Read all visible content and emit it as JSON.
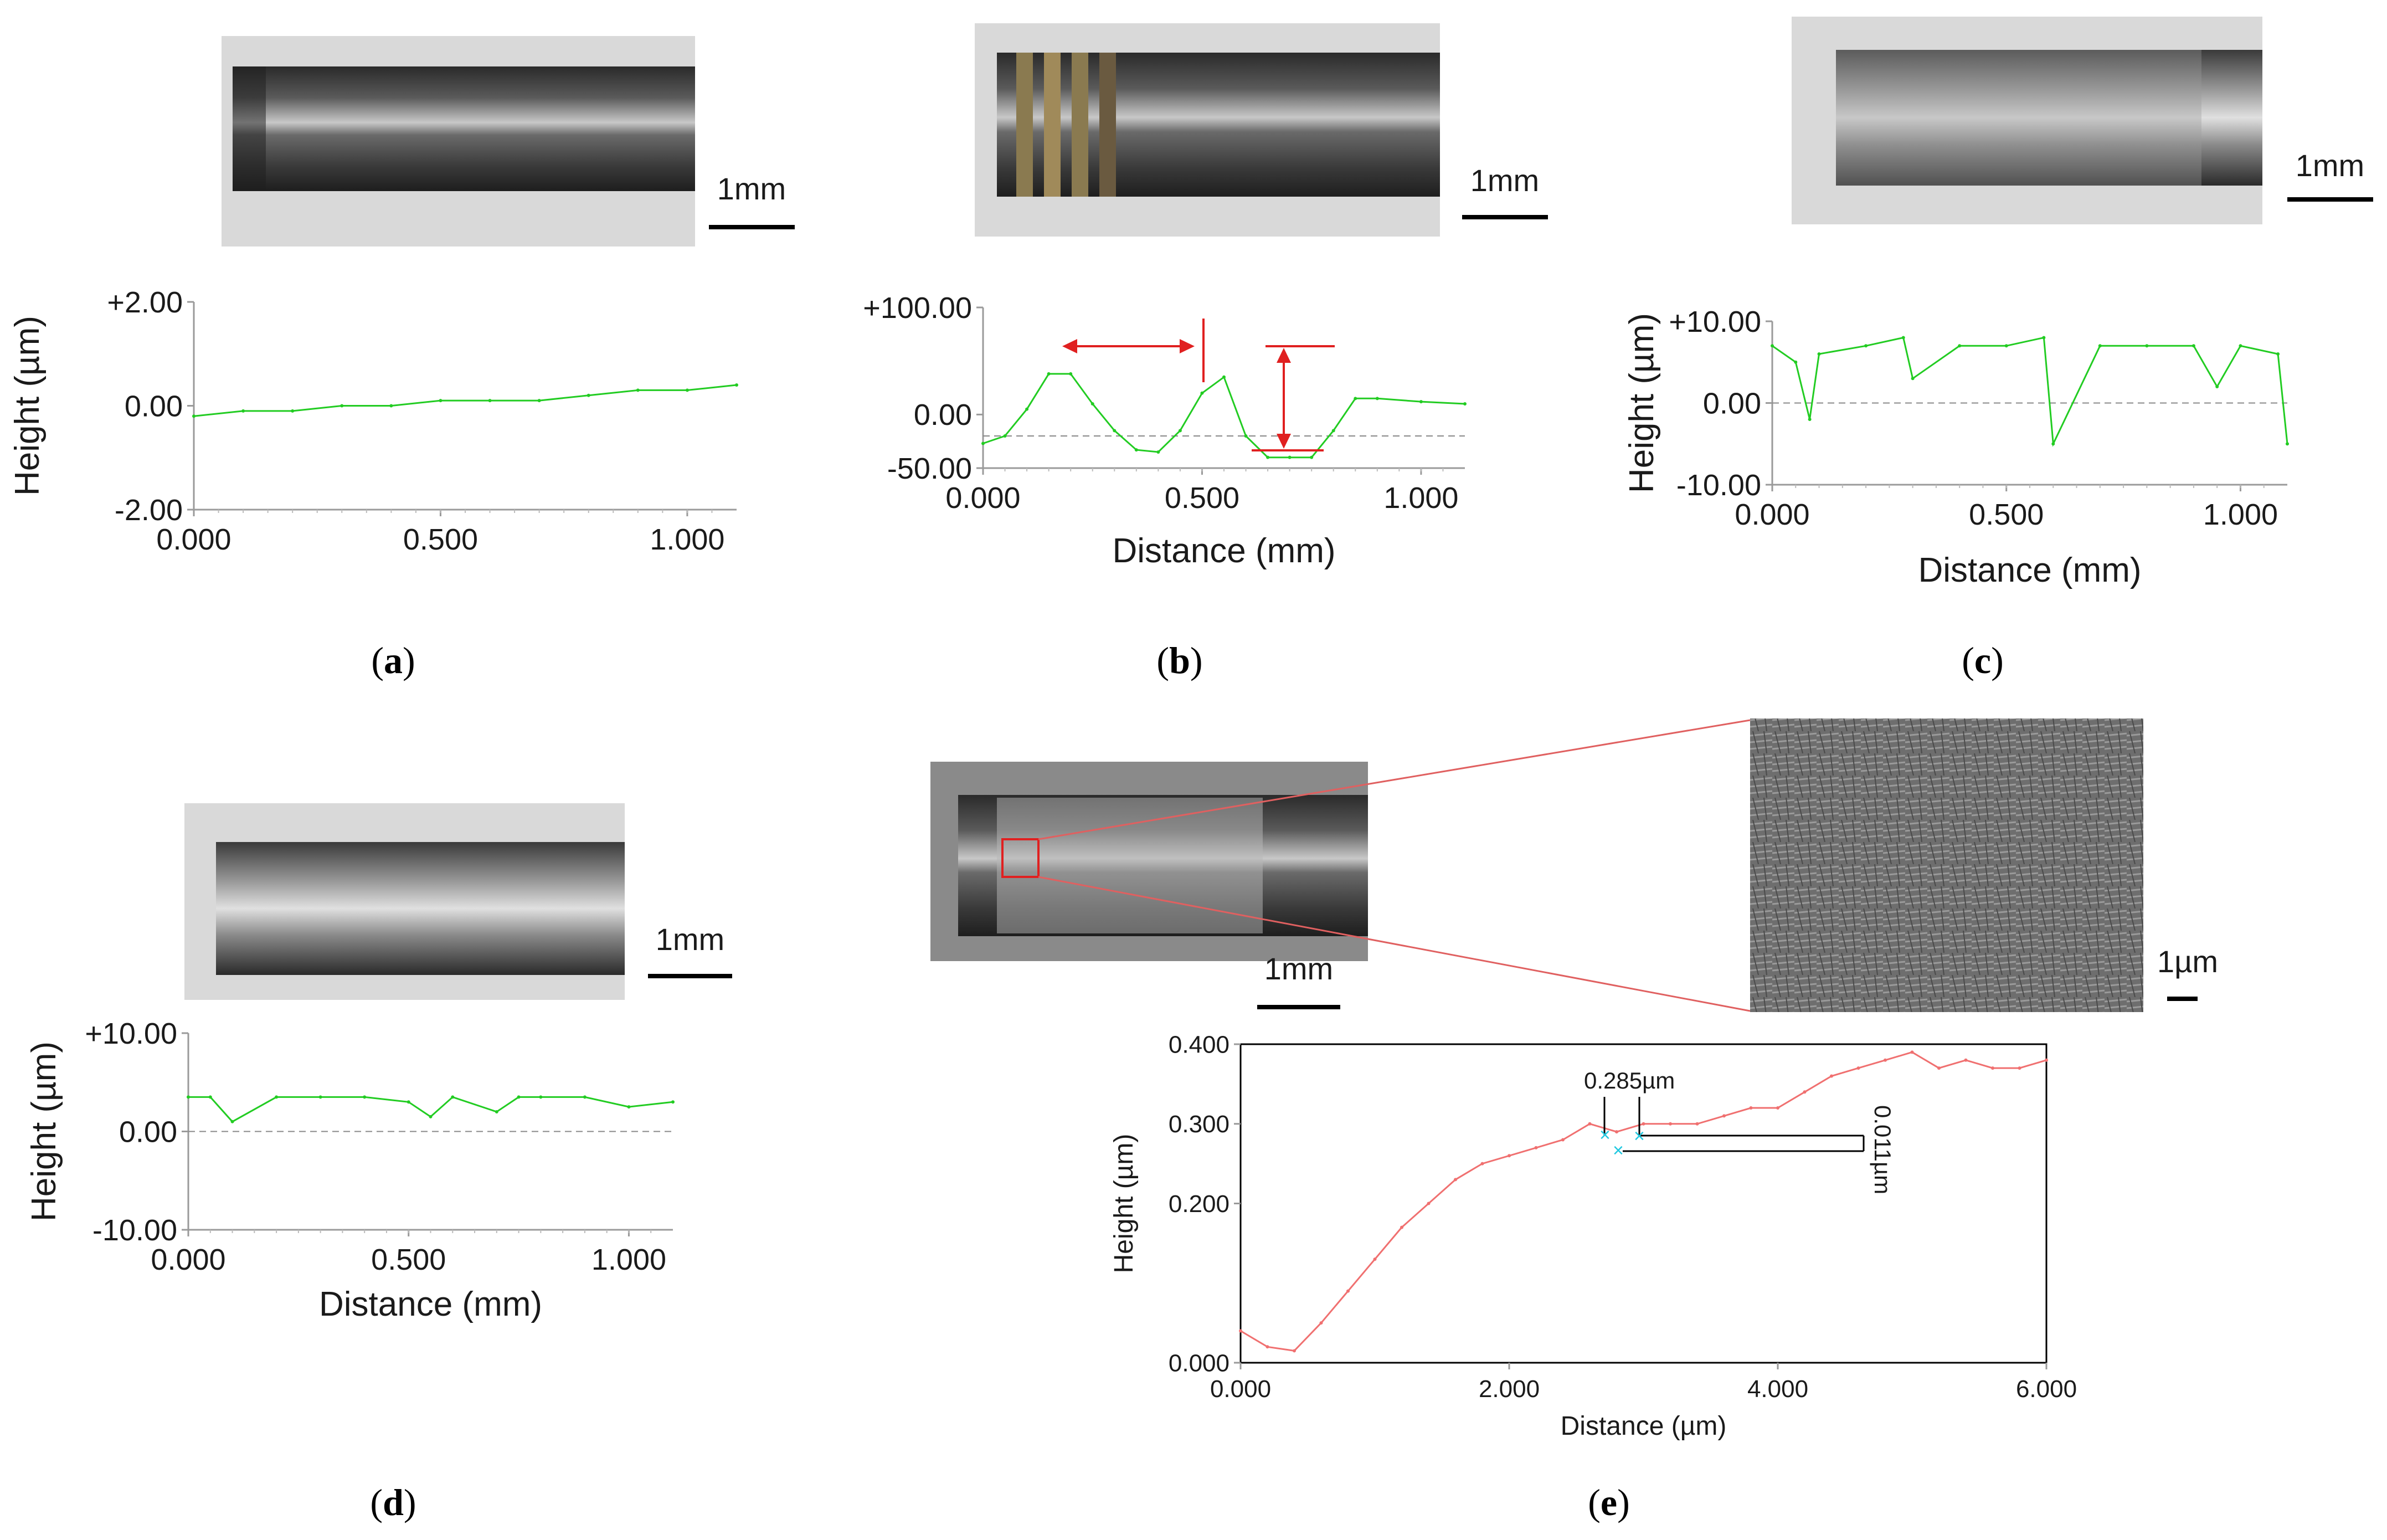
{
  "panels": [
    {
      "id": "a",
      "caption_letter": "a",
      "scale_bar": "1mm",
      "ylabel": "Height (µm)",
      "xlabel": "",
      "y_ticks": [
        "+2.00",
        "0.00",
        "-2.00"
      ],
      "x_ticks": [
        "0.000",
        "0.500",
        "1.000"
      ]
    },
    {
      "id": "b",
      "caption_letter": "b",
      "scale_bar": "1mm",
      "ylabel": "",
      "xlabel": "Distance (mm)",
      "y_ticks": [
        "+100.00",
        "0.00",
        "-50.00"
      ],
      "x_ticks": [
        "0.000",
        "0.500",
        "1.000"
      ]
    },
    {
      "id": "c",
      "caption_letter": "c",
      "scale_bar": "1mm",
      "ylabel": "Height (µm)",
      "xlabel": "Distance (mm)",
      "y_ticks": [
        "+10.00",
        "0.00",
        "-10.00"
      ],
      "x_ticks": [
        "0.000",
        "0.500",
        "1.000"
      ]
    },
    {
      "id": "d",
      "caption_letter": "d",
      "scale_bar": "1mm",
      "ylabel": "Height (µm)",
      "xlabel": "Distance (mm)",
      "y_ticks": [
        "+10.00",
        "0.00",
        "-10.00"
      ],
      "x_ticks": [
        "0.000",
        "0.500",
        "1.000"
      ]
    },
    {
      "id": "e",
      "caption_letter": "e",
      "scale_bar": "1mm",
      "scale_bar_sem": "1µm",
      "ylabel": "Height (µm)",
      "xlabel": "Distance (µm)",
      "y_ticks": [
        "0.400",
        "0.300",
        "0.200",
        "0.000"
      ],
      "x_ticks": [
        "0.000",
        "2.000",
        "4.000",
        "6.000"
      ],
      "annotation_value": "0.285µm",
      "annotation_diff": "0.011µm"
    }
  ],
  "colors": {
    "profile_green": "#22cc22",
    "profile_red": "#f07070",
    "marker_red": "#e02020",
    "marker_cyan": "#20c8e0"
  },
  "chart_data": [
    {
      "type": "line",
      "panel": "a",
      "xlabel": "",
      "ylabel": "Height (µm)",
      "xlim": [
        0,
        1.1
      ],
      "ylim": [
        -2,
        2
      ],
      "series": [
        {
          "x": [
            0.0,
            0.1,
            0.2,
            0.3,
            0.4,
            0.5,
            0.6,
            0.7,
            0.8,
            0.9,
            1.0,
            1.1
          ],
          "values": [
            -0.2,
            -0.1,
            -0.1,
            0.0,
            0.0,
            0.1,
            0.1,
            0.1,
            0.2,
            0.3,
            0.3,
            0.4
          ]
        }
      ]
    },
    {
      "type": "line",
      "panel": "b",
      "xlabel": "Distance (mm)",
      "ylabel": "",
      "xlim": [
        0,
        1.1
      ],
      "ylim": [
        -50,
        100
      ],
      "series": [
        {
          "x": [
            0.0,
            0.05,
            0.1,
            0.15,
            0.2,
            0.25,
            0.3,
            0.35,
            0.4,
            0.45,
            0.5,
            0.55,
            0.6,
            0.65,
            0.7,
            0.75,
            0.8,
            0.85,
            0.9,
            1.0,
            1.1
          ],
          "values": [
            -27,
            -20,
            5,
            38,
            38,
            10,
            -15,
            -33,
            -35,
            -15,
            20,
            35,
            -20,
            -40,
            -40,
            -40,
            -15,
            15,
            15,
            12,
            10
          ]
        }
      ]
    },
    {
      "type": "line",
      "panel": "c",
      "xlabel": "Distance (mm)",
      "ylabel": "Height (µm)",
      "xlim": [
        0,
        1.1
      ],
      "ylim": [
        -10,
        10
      ],
      "series": [
        {
          "x": [
            0.0,
            0.05,
            0.08,
            0.1,
            0.2,
            0.28,
            0.3,
            0.4,
            0.5,
            0.58,
            0.6,
            0.7,
            0.8,
            0.9,
            0.95,
            1.0,
            1.08,
            1.1
          ],
          "values": [
            7,
            5,
            -2,
            6,
            7,
            8,
            3,
            7,
            7,
            8,
            -5,
            7,
            7,
            7,
            2,
            7,
            6,
            -5
          ]
        }
      ]
    },
    {
      "type": "line",
      "panel": "d",
      "xlabel": "Distance (mm)",
      "ylabel": "Height (µm)",
      "xlim": [
        0,
        1.1
      ],
      "ylim": [
        -10,
        10
      ],
      "series": [
        {
          "x": [
            0.0,
            0.05,
            0.1,
            0.2,
            0.3,
            0.4,
            0.5,
            0.55,
            0.6,
            0.7,
            0.75,
            0.8,
            0.9,
            1.0,
            1.1
          ],
          "values": [
            3.5,
            3.5,
            1.0,
            3.5,
            3.5,
            3.5,
            3.0,
            1.5,
            3.5,
            2.0,
            3.5,
            3.5,
            3.5,
            2.5,
            3.0
          ]
        }
      ]
    },
    {
      "type": "line",
      "panel": "e",
      "xlabel": "Distance (µm)",
      "ylabel": "Height (µm)",
      "xlim": [
        0,
        6
      ],
      "ylim": [
        0,
        0.4
      ],
      "series": [
        {
          "x": [
            0.0,
            0.2,
            0.4,
            0.6,
            0.8,
            1.0,
            1.2,
            1.4,
            1.6,
            1.8,
            2.0,
            2.2,
            2.4,
            2.6,
            2.8,
            3.0,
            3.2,
            3.4,
            3.6,
            3.8,
            4.0,
            4.2,
            4.4,
            4.6,
            4.8,
            5.0,
            5.2,
            5.4,
            5.6,
            5.8,
            6.0
          ],
          "values": [
            0.04,
            0.02,
            0.015,
            0.05,
            0.09,
            0.13,
            0.17,
            0.2,
            0.23,
            0.25,
            0.26,
            0.27,
            0.28,
            0.3,
            0.29,
            0.3,
            0.3,
            0.3,
            0.31,
            0.32,
            0.32,
            0.34,
            0.36,
            0.37,
            0.38,
            0.39,
            0.37,
            0.38,
            0.37,
            0.37,
            0.38
          ]
        }
      ]
    }
  ]
}
